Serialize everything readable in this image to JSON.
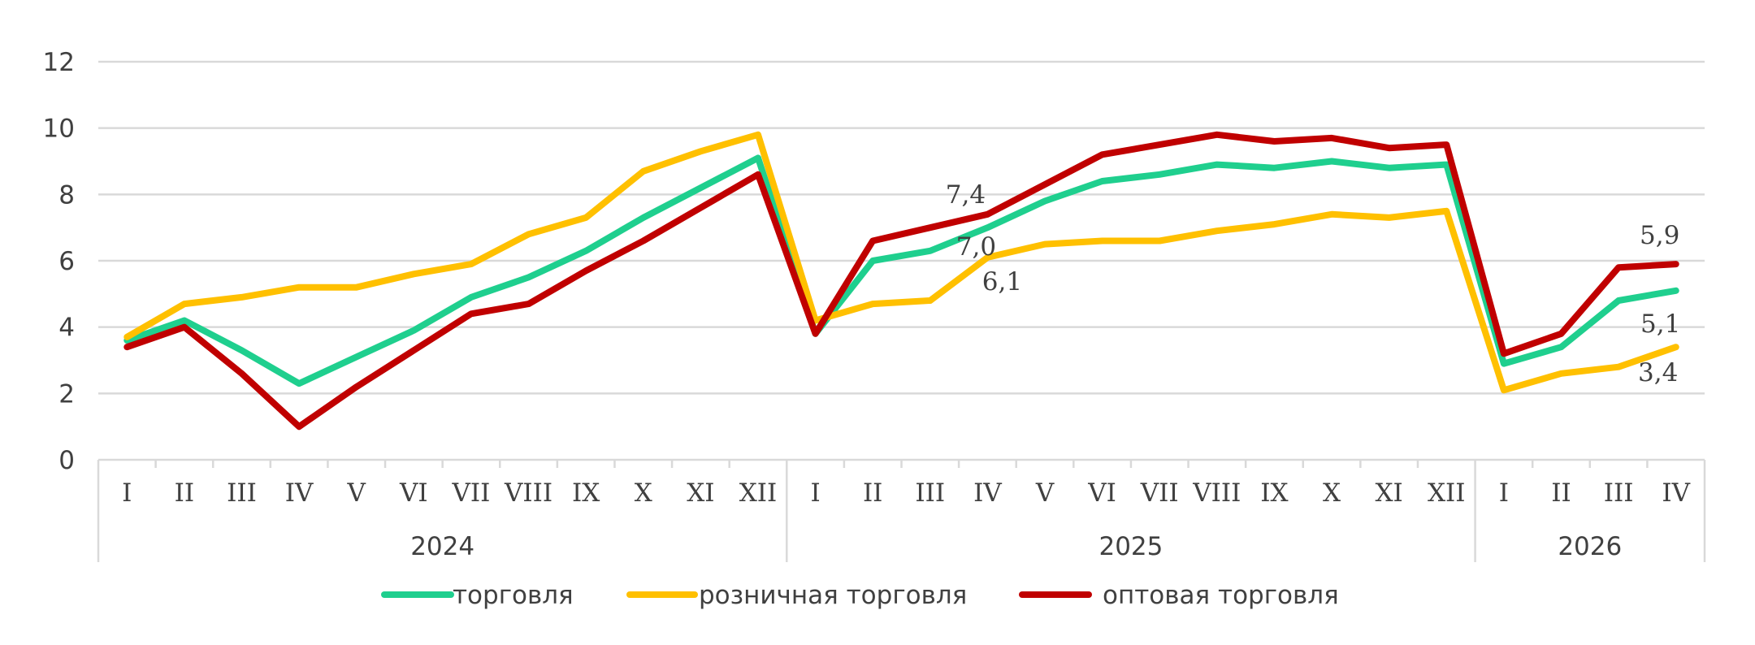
{
  "chart_data": {
    "type": "line",
    "title": "",
    "xlabel": "",
    "ylabel": "",
    "ylim": [
      0,
      12
    ],
    "yticks": [
      0,
      2,
      4,
      6,
      8,
      10,
      12
    ],
    "grid": true,
    "legend_position": "bottom",
    "groups": [
      {
        "label": "2024",
        "periods": [
          "I",
          "II",
          "III",
          "IV",
          "V",
          "VI",
          "VII",
          "VIII",
          "IX",
          "X",
          "XI",
          "XII"
        ]
      },
      {
        "label": "2025",
        "periods": [
          "I",
          "II",
          "III",
          "IV",
          "V",
          "VI",
          "VII",
          "VIII",
          "IX",
          "X",
          "XI",
          "XII"
        ]
      },
      {
        "label": "2026",
        "periods": [
          "I",
          "II",
          "III",
          "IV"
        ]
      }
    ],
    "series": [
      {
        "name": "торговля",
        "color": "#1fcf8e",
        "values": [
          3.6,
          4.2,
          3.3,
          2.3,
          3.1,
          3.9,
          4.9,
          5.5,
          6.3,
          7.3,
          8.2,
          9.1,
          3.8,
          6.0,
          6.3,
          7.0,
          7.8,
          8.4,
          8.6,
          8.9,
          8.8,
          9.0,
          8.8,
          8.9,
          2.9,
          3.4,
          4.8,
          5.1
        ]
      },
      {
        "name": "розничная торговля",
        "color": "#ffc000",
        "values": [
          3.7,
          4.7,
          4.9,
          5.2,
          5.2,
          5.6,
          5.9,
          6.8,
          7.3,
          8.7,
          9.3,
          9.8,
          4.2,
          4.7,
          4.8,
          6.1,
          6.5,
          6.6,
          6.6,
          6.9,
          7.1,
          7.4,
          7.3,
          7.5,
          2.1,
          2.6,
          2.8,
          3.4
        ]
      },
      {
        "name": "оптовая торговля",
        "color": "#c00000",
        "values": [
          3.4,
          4.0,
          2.6,
          1.0,
          2.2,
          3.3,
          4.4,
          4.7,
          5.7,
          6.6,
          7.6,
          8.6,
          3.8,
          6.6,
          7.0,
          7.4,
          8.3,
          9.2,
          9.5,
          9.8,
          9.6,
          9.7,
          9.4,
          9.5,
          3.2,
          3.8,
          5.8,
          5.9
        ]
      }
    ],
    "data_labels": [
      {
        "series": 2,
        "index": 15,
        "text": "7,4"
      },
      {
        "series": 0,
        "index": 15,
        "text": "7,0"
      },
      {
        "series": 1,
        "index": 15,
        "text": "6,1"
      },
      {
        "series": 2,
        "index": 27,
        "text": "5,9"
      },
      {
        "series": 0,
        "index": 27,
        "text": "5,1"
      },
      {
        "series": 1,
        "index": 27,
        "text": "3,4"
      }
    ]
  }
}
